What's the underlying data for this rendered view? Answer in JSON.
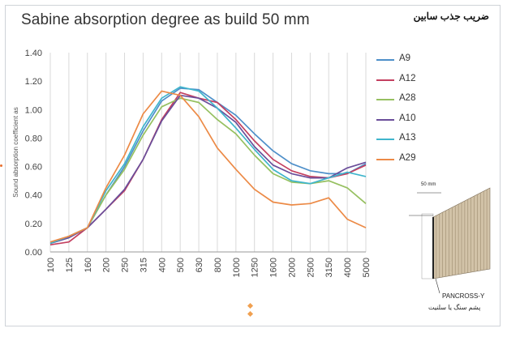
{
  "page": {
    "title": "Sabine absorption degree as build 50 mm",
    "title_fa": "ضریب جذب سابین"
  },
  "chart_data": {
    "type": "line",
    "title": "Sabine absorption degree as build 50 mm",
    "xlabel": "",
    "ylabel": "Sound absorption coefficient as",
    "ylim": [
      0,
      1.4
    ],
    "yticks": [
      "0.00",
      "0.20",
      "0.40",
      "0.60",
      "0.80",
      "1.00",
      "1.20",
      "1.40"
    ],
    "categories": [
      "100",
      "125",
      "160",
      "200",
      "250",
      "315",
      "400",
      "500",
      "630",
      "800",
      "1000",
      "1250",
      "1600",
      "2000",
      "2500",
      "3150",
      "4000",
      "5000"
    ],
    "grid": "vertical",
    "legend_position": "right",
    "series": [
      {
        "name": "A9",
        "color": "#4e8fc9",
        "values": [
          0.06,
          0.1,
          0.17,
          0.4,
          0.6,
          0.85,
          1.06,
          1.15,
          1.14,
          1.05,
          0.96,
          0.83,
          0.71,
          0.62,
          0.57,
          0.55,
          0.55,
          0.62
        ]
      },
      {
        "name": "A12",
        "color": "#c44060",
        "values": [
          0.05,
          0.07,
          0.17,
          0.3,
          0.43,
          0.65,
          0.93,
          1.12,
          1.08,
          1.05,
          0.93,
          0.78,
          0.65,
          0.57,
          0.53,
          0.52,
          0.55,
          0.61
        ]
      },
      {
        "name": "A28",
        "color": "#96c060",
        "values": [
          0.06,
          0.11,
          0.17,
          0.4,
          0.58,
          0.82,
          1.02,
          1.08,
          1.05,
          0.93,
          0.83,
          0.68,
          0.55,
          0.49,
          0.48,
          0.5,
          0.45,
          0.34
        ]
      },
      {
        "name": "A10",
        "color": "#6a4e9a",
        "values": [
          0.06,
          0.1,
          0.17,
          0.3,
          0.44,
          0.65,
          0.92,
          1.1,
          1.08,
          1.01,
          0.91,
          0.74,
          0.61,
          0.55,
          0.52,
          0.52,
          0.59,
          0.63
        ]
      },
      {
        "name": "A13",
        "color": "#3fb5cc",
        "values": [
          0.06,
          0.11,
          0.17,
          0.43,
          0.62,
          0.88,
          1.08,
          1.16,
          1.13,
          1.01,
          0.87,
          0.72,
          0.58,
          0.5,
          0.48,
          0.52,
          0.56,
          0.53
        ]
      },
      {
        "name": "A29",
        "color": "#ec8a46",
        "values": [
          0.07,
          0.11,
          0.17,
          0.45,
          0.68,
          0.97,
          1.13,
          1.1,
          0.95,
          0.73,
          0.58,
          0.44,
          0.35,
          0.33,
          0.34,
          0.38,
          0.23,
          0.17
        ]
      }
    ]
  },
  "inset": {
    "dimension_label": "50 mm",
    "product_label": "PANCROSS-Y",
    "material_label_fa": "پشم سنگ یا سلنیت"
  }
}
